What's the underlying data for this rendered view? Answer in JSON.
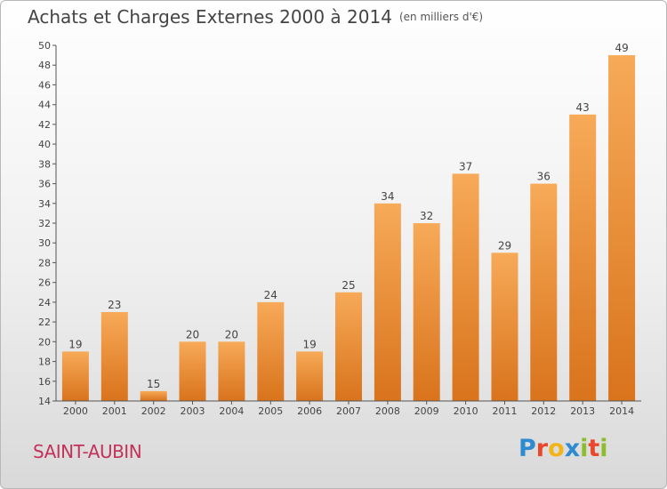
{
  "title": "Achats et Charges Externes 2000 à 2014",
  "subtitle": "(en milliers d'€)",
  "commune": "SAINT-AUBIN",
  "logo": {
    "text": "Proxiti",
    "colors": [
      "#2e8bd1",
      "#e9462b",
      "#f2b418",
      "#2e8bd1",
      "#8cbd2c",
      "#e9462b",
      "#8cbd2c"
    ]
  },
  "chart_data": {
    "type": "bar",
    "categories": [
      "2000",
      "2001",
      "2002",
      "2003",
      "2004",
      "2005",
      "2006",
      "2007",
      "2008",
      "2009",
      "2010",
      "2011",
      "2012",
      "2013",
      "2014"
    ],
    "values": [
      19,
      23,
      15,
      20,
      20,
      24,
      19,
      25,
      34,
      32,
      37,
      29,
      36,
      43,
      49
    ],
    "data_labels": [
      "19",
      "23",
      "15",
      "20",
      "20",
      "24",
      "19",
      "25",
      "34",
      "32",
      "37",
      "29",
      "36",
      "43",
      "49"
    ],
    "ylim": [
      14,
      50
    ],
    "yticks": [
      "14",
      "16",
      "18",
      "20",
      "22",
      "24",
      "26",
      "28",
      "30",
      "32",
      "34",
      "36",
      "38",
      "40",
      "42",
      "44",
      "46",
      "48",
      "50"
    ],
    "grid": false,
    "xlabel": "",
    "ylabel": "",
    "colors": {
      "bar_top": "#f7aa58",
      "bar_bottom": "#d9731c",
      "axis": "#555555"
    }
  }
}
